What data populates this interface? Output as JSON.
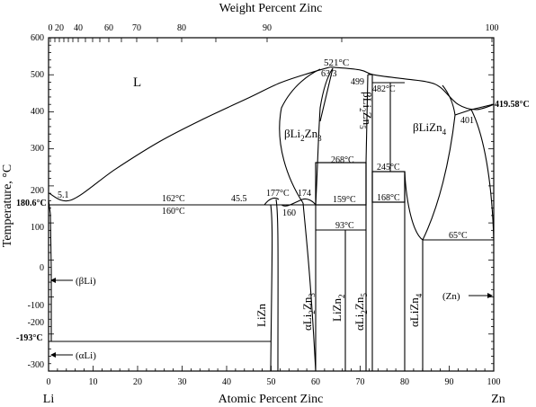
{
  "axes": {
    "top_title": "Weight Percent Zinc",
    "bottom_title": "Atomic Percent Zinc",
    "left_title": "Temperature, °C",
    "left_end": "Li",
    "right_end": "Zn",
    "atomic_ticks": [
      "0",
      "10",
      "20",
      "30",
      "40",
      "50",
      "60",
      "70",
      "80",
      "90",
      "100"
    ],
    "weight_ticks": [
      "0",
      "20",
      "40",
      "60",
      "70",
      "80",
      "90",
      "100"
    ],
    "temp_ticks": [
      "600",
      "500",
      "400",
      "300",
      "200",
      "100",
      "0",
      "-100",
      "-200",
      "-300"
    ]
  },
  "chart_data": {
    "type": "phase-diagram",
    "xlim": [
      0,
      100
    ],
    "ylim": [
      -300,
      600
    ],
    "x_unit": "Atomic Percent Zinc",
    "y_unit": "°C",
    "liquidus_left": [
      [
        0,
        180.6
      ],
      [
        5.1,
        162
      ],
      [
        15,
        245
      ],
      [
        25,
        320
      ],
      [
        35,
        382
      ],
      [
        45,
        438
      ],
      [
        52,
        478
      ],
      [
        59,
        506
      ],
      [
        63.3,
        521
      ]
    ],
    "liquidus_right": [
      [
        63.3,
        521
      ],
      [
        70,
        513
      ],
      [
        73,
        500
      ],
      [
        80,
        489
      ],
      [
        85,
        481
      ],
      [
        88,
        466
      ],
      [
        92,
        420
      ],
      [
        96,
        406
      ],
      [
        100,
        419.58
      ]
    ]
  },
  "labels": {
    "L": "L",
    "t_521": "521°C",
    "c_63_3": "63.3",
    "t_499": "499",
    "t_482": "482°C",
    "t_419": "419.58°C",
    "t_401": "401",
    "t_180": "180.6°C",
    "c_5_1": "5.1",
    "t_162": "162°C",
    "t_160": "160°C",
    "c_45_5": "45.5",
    "t_177": "177°C",
    "t_174": "174",
    "t_160b": "160",
    "t_268": "268°C",
    "t_159": "159°C",
    "t_93": "93°C",
    "t_245": "245°C",
    "t_168": "168°C",
    "t_65": "65°C",
    "t_m193": "-193°C",
    "beta_li": "(βLi)",
    "alpha_li": "(αLi)",
    "zn": "(Zn)",
    "p_bLi2Zn3": {
      "pre": "βLi",
      "s1": "2",
      "mid": "Zn",
      "s2": "3"
    },
    "p_bLi2Zn5": {
      "pre": "βLi",
      "s1": "2",
      "mid": "Zn",
      "s2": "5"
    },
    "p_bLiZn4": {
      "pre": "βLiZn",
      "s1": "4"
    },
    "p_LiZn": "LiZn",
    "p_aLi2Zn3": {
      "pre": "αLi",
      "s1": "2",
      "mid": "Zn",
      "s2": "3"
    },
    "p_LiZn2": {
      "pre": "LiZn",
      "s1": "2"
    },
    "p_aLi2Zn5": {
      "pre": "αLi",
      "s1": "2",
      "mid": "Zn",
      "s2": "5"
    },
    "p_aLiZn4": {
      "pre": "αLiZn",
      "s1": "4"
    }
  }
}
